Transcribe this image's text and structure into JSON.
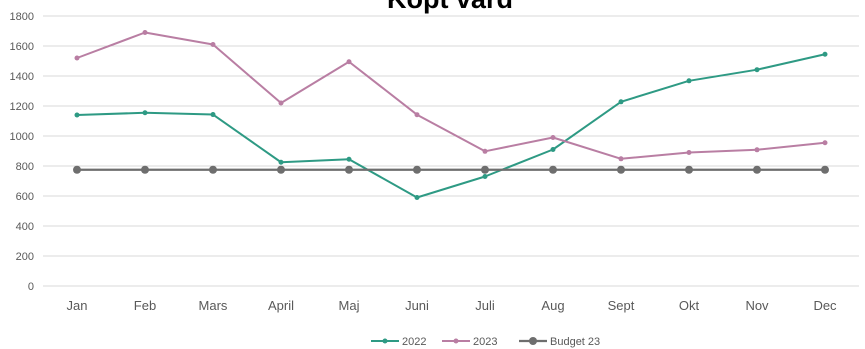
{
  "chart_data": {
    "type": "line",
    "title": "Köpt vård",
    "xlabel": "",
    "ylabel": "",
    "ylim": [
      0,
      1800
    ],
    "ytick_step": 200,
    "yticks": [
      "0",
      "200",
      "400",
      "600",
      "800",
      "1000",
      "1200",
      "1400",
      "1600",
      "1800"
    ],
    "categories": [
      "Jan",
      "Feb",
      "Mars",
      "April",
      "Maj",
      "Juni",
      "Juli",
      "Aug",
      "Sept",
      "Okt",
      "Nov",
      "Dec"
    ],
    "grid": true,
    "legend_position": "bottom",
    "series": [
      {
        "name": "2022",
        "color": "#2e9a84",
        "marker": "circle-small",
        "values": [
          1140,
          1155,
          1143,
          825,
          845,
          590,
          730,
          910,
          1228,
          1368,
          1442,
          1545
        ]
      },
      {
        "name": "2023",
        "color": "#b97ea3",
        "marker": "circle-small",
        "values": [
          1520,
          1690,
          1610,
          1220,
          1495,
          1142,
          898,
          990,
          848,
          890,
          908,
          955
        ]
      },
      {
        "name": "Budget 23",
        "color": "#6e6e6e",
        "marker": "circle-large",
        "values": [
          775,
          775,
          775,
          775,
          775,
          775,
          775,
          775,
          775,
          775,
          775,
          775
        ]
      }
    ]
  }
}
